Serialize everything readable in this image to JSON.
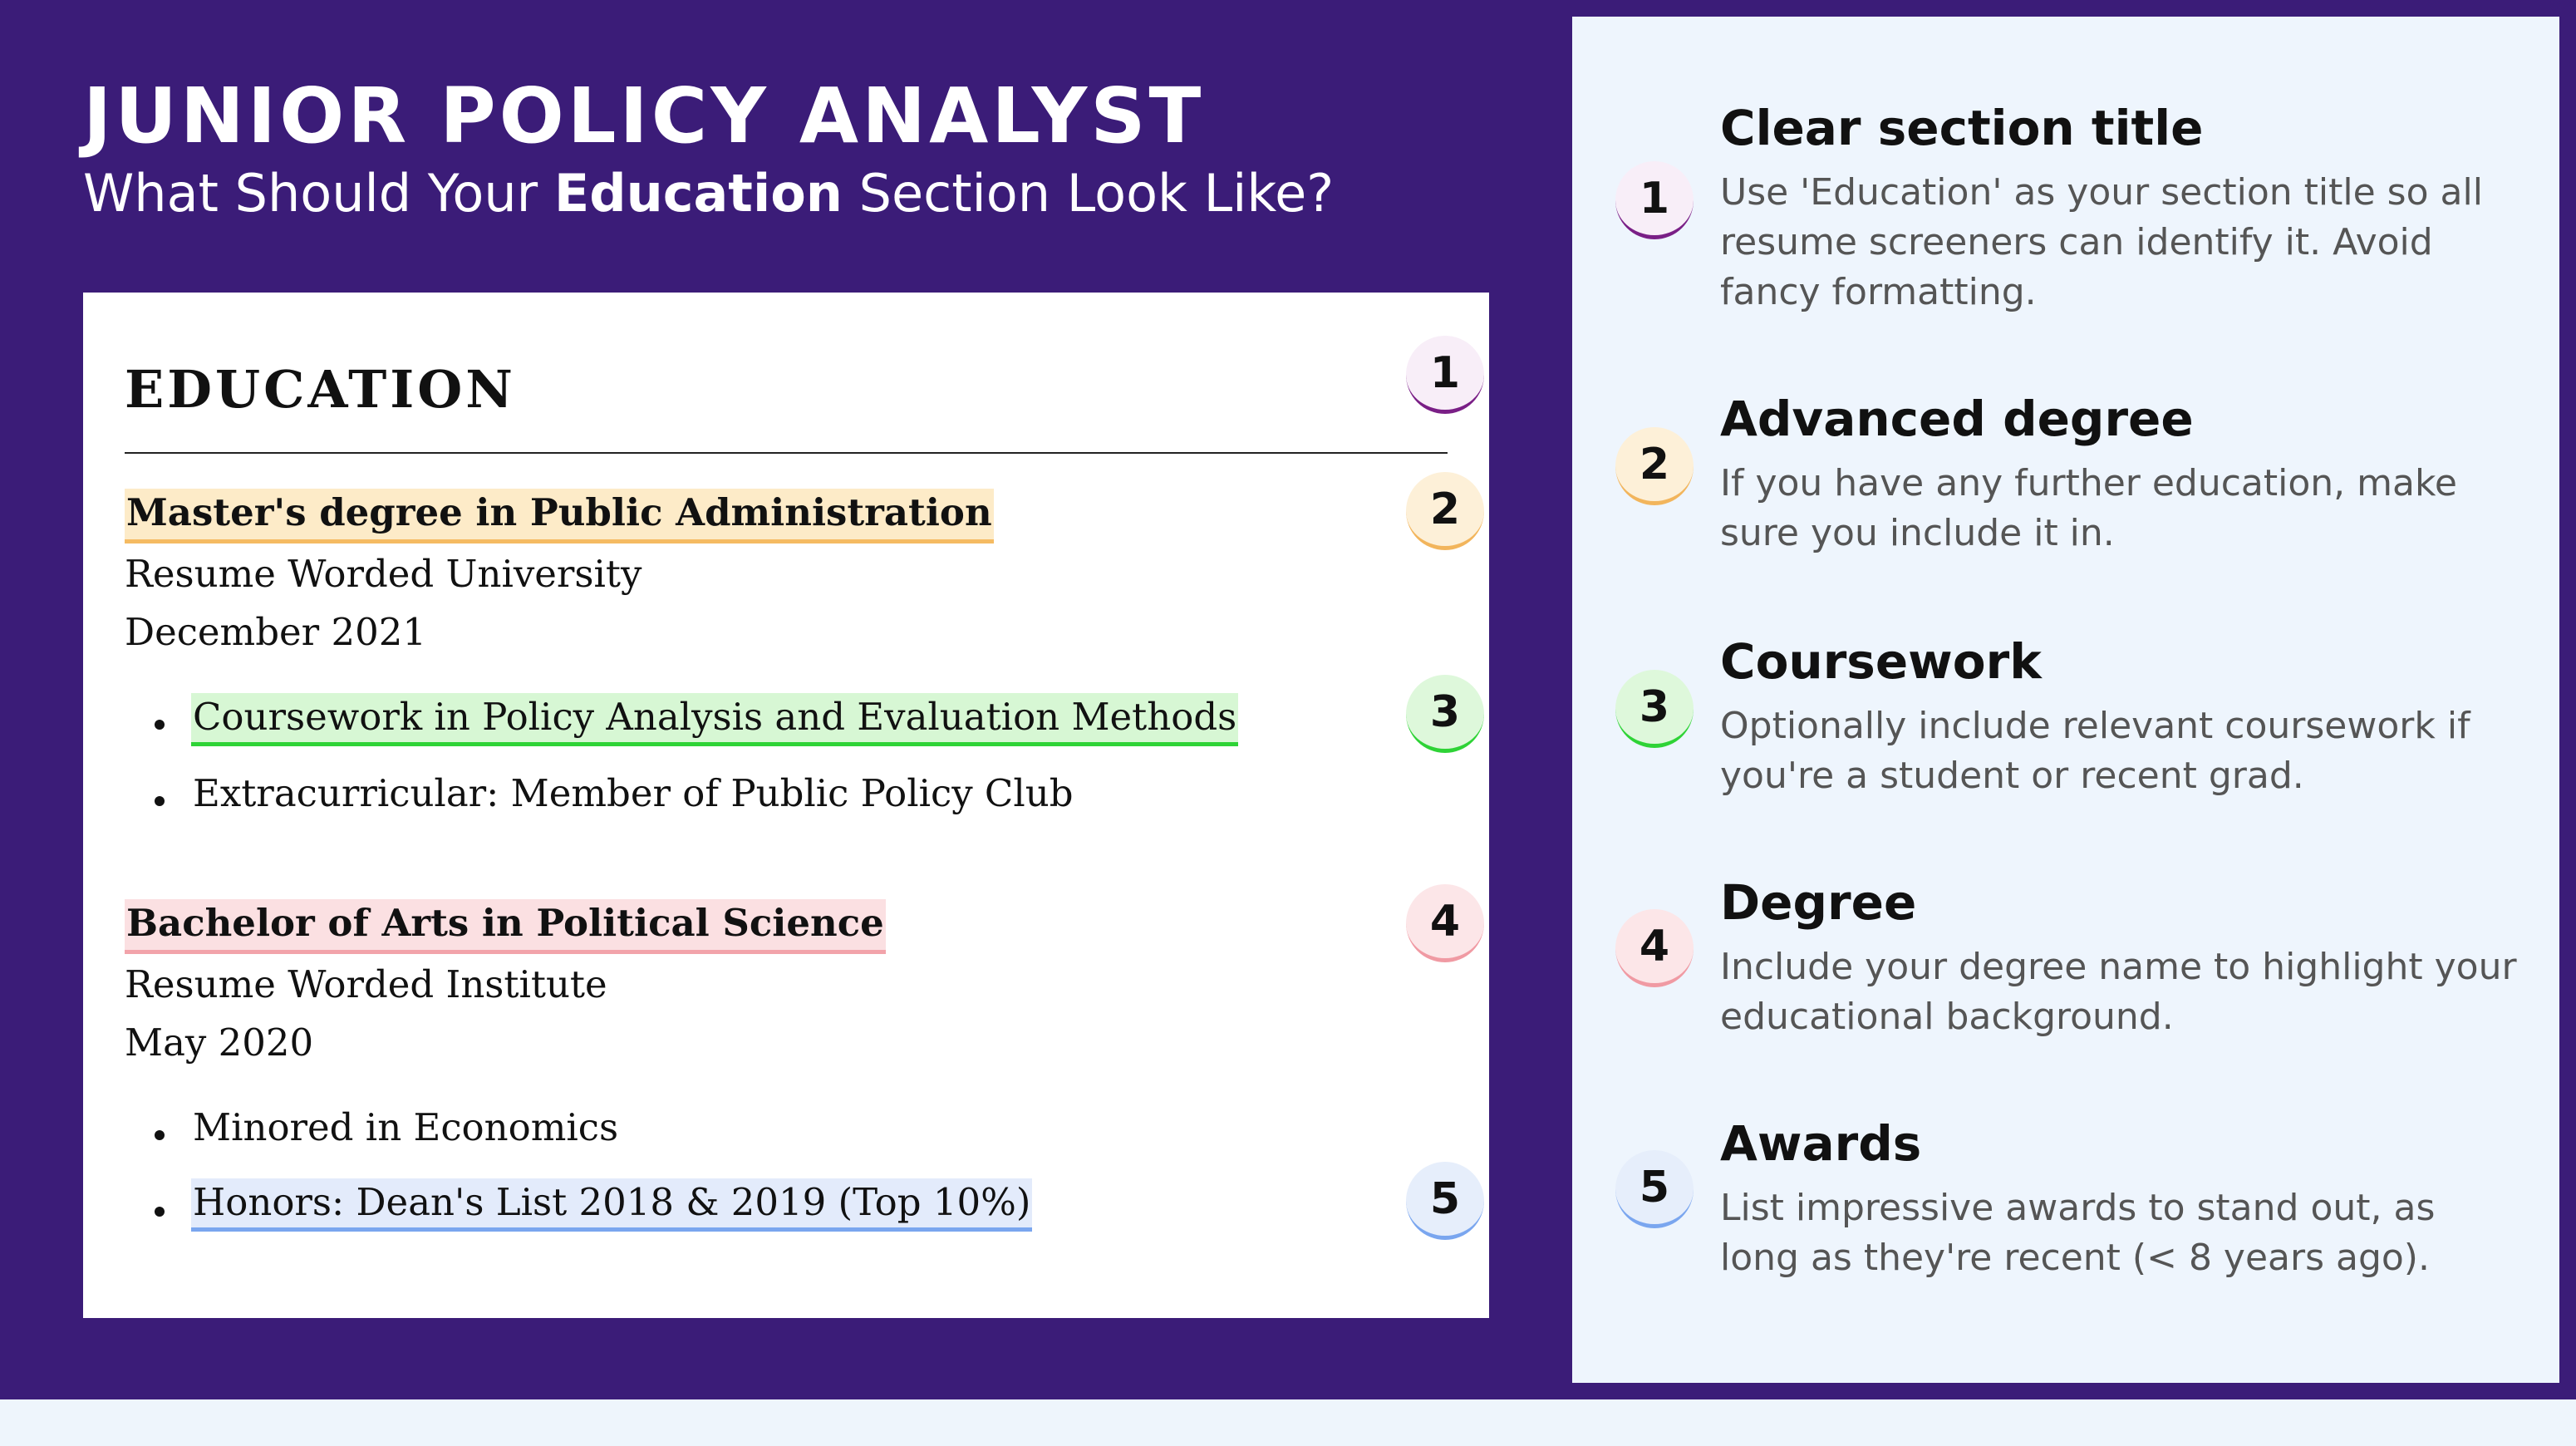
{
  "header": {
    "job_title": "JUNIOR POLICY ANALYST",
    "subtitle_before": "What Should Your ",
    "subtitle_bold": "Education",
    "subtitle_after": " Section Look Like?"
  },
  "resume": {
    "section_heading": "EDUCATION",
    "entries": [
      {
        "degree": "Master's degree in Public Administration",
        "school": "Resume Worded University",
        "date": "December 2021",
        "bullets": [
          "Coursework in Policy Analysis and Evaluation Methods",
          "Extracurricular: Member of Public Policy Club"
        ]
      },
      {
        "degree": "Bachelor of Arts in Political Science",
        "school": "Resume Worded Institute",
        "date": "May 2020",
        "bullets": [
          "Minored in Economics",
          "Honors: Dean's List 2018 & 2019 (Top 10%)"
        ]
      }
    ]
  },
  "tips": [
    {
      "number": "1",
      "title": "Clear section title",
      "body": "Use 'Education' as your section title so all resume screeners can identify it. Avoid fancy formatting."
    },
    {
      "number": "2",
      "title": "Advanced degree",
      "body": "If you have any further education, make sure you include it in."
    },
    {
      "number": "3",
      "title": "Coursework",
      "body": "Optionally include relevant coursework if you're a student or recent grad."
    },
    {
      "number": "4",
      "title": "Degree",
      "body": "Include your degree name to highlight your educational background."
    },
    {
      "number": "5",
      "title": "Awards",
      "body": "List impressive awards to stand out, as long as they're recent (< 8 years ago)."
    }
  ],
  "colors": {
    "background_purple": "#3b1c78",
    "highlight_orange": "#f5bb62",
    "highlight_green": "#2ed336",
    "highlight_pink": "#f2a3aa",
    "highlight_blue": "#7aa6ef",
    "marker_1": "#7a1f86"
  }
}
